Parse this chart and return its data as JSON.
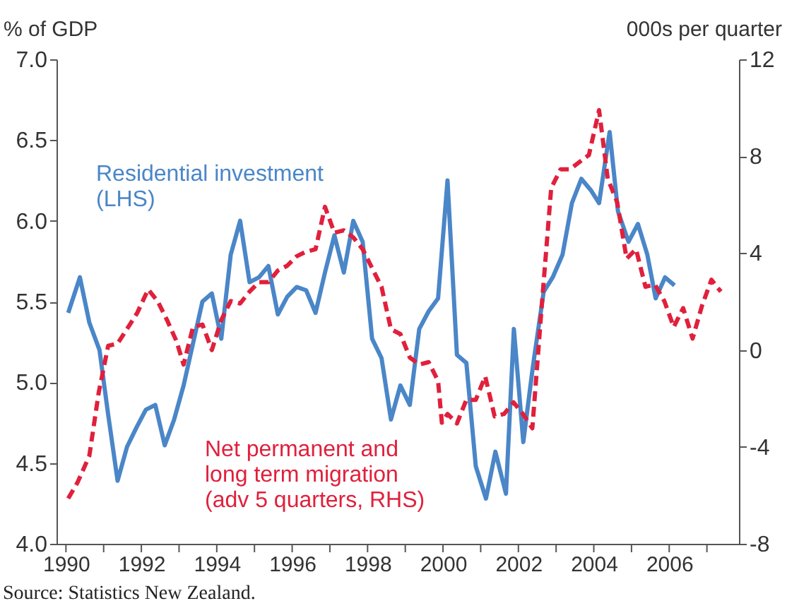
{
  "chart_data": {
    "type": "line",
    "ylabel": "% of GDP",
    "y2label": "000s per quarter",
    "annotations": [
      "Source: Statistics New Zealand."
    ],
    "xlim": [
      1989.75,
      2007.85
    ],
    "xticks": [
      1990,
      {
        "value": 1991,
        "label": null
      },
      1992,
      {
        "value": 1993,
        "label": null
      },
      1994,
      {
        "value": 1995,
        "label": null
      },
      1996,
      {
        "value": 1997,
        "label": null
      },
      1998,
      {
        "value": 1999,
        "label": null
      },
      2000,
      {
        "value": 2001,
        "label": null
      },
      2002,
      {
        "value": 2003,
        "label": null
      },
      2004,
      {
        "value": 2005,
        "label": null
      },
      2006,
      {
        "value": 2007,
        "label": null
      }
    ],
    "ylim": [
      4.0,
      7.0
    ],
    "yticks": [
      {
        "value": 4,
        "label": "4.0"
      },
      4.5,
      {
        "value": 5,
        "label": "5.0"
      },
      5.5,
      {
        "value": 6,
        "label": "6.0"
      },
      6.5,
      {
        "value": 7,
        "label": "7.0"
      }
    ],
    "y2lim": [
      -8,
      12
    ],
    "y2ticks": [
      -8,
      -4,
      0,
      4,
      8,
      12
    ],
    "grid": false,
    "legend": false,
    "series": [
      {
        "name": "Residential investment\n(LHS)",
        "color": "#4a86c8",
        "line_style": "solid",
        "x": [
          1990.06,
          1990.37,
          1990.62,
          1990.89,
          1991.12,
          1991.37,
          1991.62,
          1991.87,
          1992.12,
          1992.37,
          1992.62,
          1992.87,
          1993.12,
          1993.37,
          1993.62,
          1993.87,
          1994.12,
          1994.37,
          1994.62,
          1994.87,
          1995.12,
          1995.37,
          1995.62,
          1995.87,
          1996.12,
          1996.37,
          1996.62,
          1996.87,
          1997.12,
          1997.37,
          1997.62,
          1997.87,
          1998.12,
          1998.37,
          1998.62,
          1998.87,
          1999.12,
          1999.37,
          1999.62,
          1999.87,
          2000.12,
          2000.37,
          2000.62,
          2000.87,
          2001.14,
          2001.39,
          2001.67,
          2001.88,
          2002.13,
          2002.38,
          2002.67,
          2002.91,
          2003.17,
          2003.42,
          2003.67,
          2003.92,
          2004.14,
          2004.42,
          2004.64,
          2004.92,
          2005.17,
          2005.42,
          2005.64,
          2005.89,
          2006.14
        ],
        "values": [
          5.43,
          5.65,
          5.37,
          5.2,
          4.8,
          4.39,
          4.6,
          4.72,
          4.83,
          4.86,
          4.61,
          4.77,
          4.98,
          5.24,
          5.5,
          5.55,
          5.27,
          5.79,
          6.0,
          5.62,
          5.65,
          5.72,
          5.42,
          5.53,
          5.59,
          5.57,
          5.43,
          5.68,
          5.91,
          5.68,
          6.0,
          5.87,
          5.27,
          5.15,
          4.77,
          4.98,
          4.86,
          5.33,
          5.44,
          5.52,
          6.25,
          5.17,
          5.12,
          4.48,
          4.28,
          4.57,
          4.31,
          5.33,
          4.63,
          5.09,
          5.56,
          5.65,
          5.79,
          6.11,
          6.26,
          6.19,
          6.11,
          6.55,
          6.06,
          5.87,
          5.98,
          5.79,
          5.52,
          5.65,
          5.6
        ]
      },
      {
        "name": "Net permanent and\nlong term migration\n(adv 5 quarters, RHS)",
        "color": "#e0203c",
        "line_style": "dashed",
        "axis": "y2",
        "x": [
          1990.06,
          1990.31,
          1990.62,
          1990.87,
          1991.12,
          1991.37,
          1991.62,
          1991.89,
          1992.18,
          1992.43,
          1992.68,
          1992.93,
          1993.12,
          1993.37,
          1993.62,
          1993.87,
          1994.12,
          1994.37,
          1994.62,
          1994.87,
          1995.12,
          1995.37,
          1995.62,
          1995.87,
          1996.12,
          1996.37,
          1996.62,
          1996.87,
          1997.12,
          1997.37,
          1997.62,
          1997.87,
          1998.12,
          1998.37,
          1998.62,
          1998.87,
          1999.12,
          1999.37,
          1999.62,
          1999.87,
          1999.97,
          2000.12,
          2000.37,
          2000.62,
          2000.87,
          2001.12,
          2001.37,
          2001.62,
          2001.87,
          2002.12,
          2002.37,
          2002.62,
          2002.87,
          2003.12,
          2003.37,
          2003.62,
          2003.87,
          2004.14,
          2004.37,
          2004.62,
          2004.87,
          2005.12,
          2005.37,
          2005.62,
          2005.87,
          2006.12,
          2006.37,
          2006.62,
          2006.87,
          2007.12,
          2007.37
        ],
        "values": [
          -6.13,
          -5.46,
          -4.37,
          -1.75,
          0.17,
          0.27,
          0.87,
          1.53,
          2.5,
          2.02,
          1.24,
          0.37,
          -0.6,
          0.95,
          1.05,
          0,
          1.24,
          2.02,
          1.92,
          2.41,
          2.8,
          2.8,
          3.28,
          3.48,
          3.87,
          4.06,
          4.16,
          5.91,
          4.84,
          4.94,
          4.65,
          4.16,
          3.38,
          2.61,
          0.86,
          0.66,
          -0.31,
          -0.6,
          -0.5,
          -1.28,
          -3.0,
          -2.64,
          -3.03,
          -2.06,
          -2.06,
          -1.09,
          -2.74,
          -2.64,
          -2.16,
          -2.64,
          -3.23,
          1.83,
          6.69,
          7.46,
          7.46,
          7.76,
          8.05,
          9.9,
          7.07,
          6.1,
          3.77,
          4.16,
          2.61,
          2.7,
          2.02,
          0.95,
          1.73,
          0.47,
          1.83,
          2.9,
          2.41
        ]
      }
    ]
  }
}
